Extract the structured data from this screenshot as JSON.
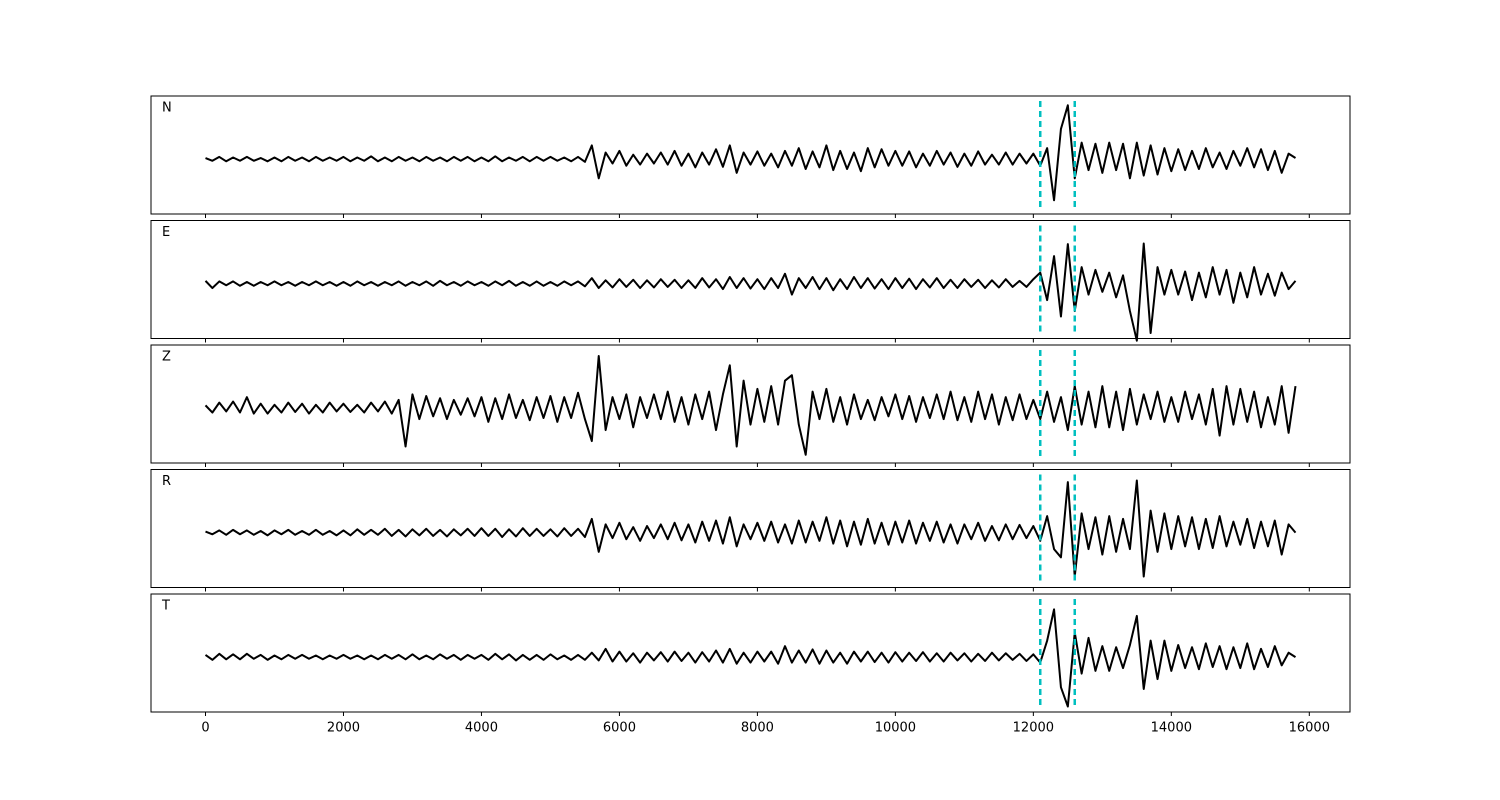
{
  "chart_data": {
    "type": "line",
    "layout": "stacked",
    "xlim": [
      -790,
      16590
    ],
    "ylim": [
      -1,
      1.15
    ],
    "xticks": [
      0,
      2000,
      4000,
      6000,
      8000,
      10000,
      12000,
      14000,
      16000
    ],
    "vlines": [
      12100,
      12600
    ],
    "vline_color": "#00bfbf",
    "vline_style": "dashed",
    "x": [
      0,
      100,
      200,
      300,
      400,
      500,
      600,
      700,
      800,
      900,
      1000,
      1100,
      1200,
      1300,
      1400,
      1500,
      1600,
      1700,
      1800,
      1900,
      2000,
      2100,
      2200,
      2300,
      2400,
      2500,
      2600,
      2700,
      2800,
      2900,
      3000,
      3100,
      3200,
      3300,
      3400,
      3500,
      3600,
      3700,
      3800,
      3900,
      4000,
      4100,
      4200,
      4300,
      4400,
      4500,
      4600,
      4700,
      4800,
      4900,
      5000,
      5100,
      5200,
      5300,
      5400,
      5500,
      5600,
      5700,
      5800,
      5900,
      6000,
      6100,
      6200,
      6300,
      6400,
      6500,
      6600,
      6700,
      6800,
      6900,
      7000,
      7100,
      7200,
      7300,
      7400,
      7500,
      7600,
      7700,
      7800,
      7900,
      8000,
      8100,
      8200,
      8300,
      8400,
      8500,
      8600,
      8700,
      8800,
      8900,
      9000,
      9100,
      9200,
      9300,
      9400,
      9500,
      9600,
      9700,
      9800,
      9900,
      10000,
      10100,
      10200,
      10300,
      10400,
      10500,
      10600,
      10700,
      10800,
      10900,
      11000,
      11100,
      11200,
      11300,
      11400,
      11500,
      11600,
      11700,
      11800,
      11900,
      12000,
      12100,
      12200,
      12300,
      12400,
      12500,
      12600,
      12700,
      12800,
      12900,
      13000,
      13100,
      13200,
      13300,
      13400,
      13500,
      13600,
      13700,
      13800,
      13900,
      14000,
      14100,
      14200,
      14300,
      14400,
      14500,
      14600,
      14700,
      14800,
      14900,
      15000,
      15100,
      15200,
      15300,
      15400,
      15500,
      15600,
      15700,
      15800
    ],
    "series": [
      {
        "name": "N",
        "color": "#000000",
        "values": [
          0.02,
          -0.03,
          0.04,
          -0.04,
          0.03,
          -0.03,
          0.04,
          -0.03,
          0.02,
          -0.04,
          0.03,
          -0.04,
          0.04,
          -0.03,
          0.03,
          -0.04,
          0.04,
          -0.03,
          0.03,
          -0.03,
          0.04,
          -0.04,
          0.03,
          -0.03,
          0.05,
          -0.04,
          0.03,
          -0.04,
          0.04,
          -0.03,
          0.03,
          -0.04,
          0.04,
          -0.03,
          0.03,
          -0.04,
          0.04,
          -0.03,
          0.04,
          -0.04,
          0.03,
          -0.04,
          0.05,
          -0.04,
          0.03,
          -0.03,
          0.04,
          -0.04,
          0.04,
          -0.03,
          0.04,
          -0.03,
          0.03,
          -0.04,
          0.04,
          -0.05,
          0.25,
          -0.35,
          0.12,
          -0.08,
          0.15,
          -0.12,
          0.08,
          -0.1,
          0.1,
          -0.08,
          0.12,
          -0.1,
          0.15,
          -0.12,
          0.1,
          -0.15,
          0.12,
          -0.1,
          0.18,
          -0.14,
          0.25,
          -0.25,
          0.12,
          -0.1,
          0.14,
          -0.12,
          0.1,
          -0.15,
          0.15,
          -0.12,
          0.2,
          -0.18,
          0.14,
          -0.15,
          0.25,
          -0.2,
          0.15,
          -0.18,
          0.12,
          -0.22,
          0.2,
          -0.15,
          0.18,
          -0.12,
          0.15,
          -0.12,
          0.14,
          -0.15,
          0.1,
          -0.12,
          0.15,
          -0.1,
          0.12,
          -0.14,
          0.1,
          -0.12,
          0.14,
          -0.1,
          0.08,
          -0.1,
          0.12,
          -0.1,
          0.1,
          -0.08,
          0.1,
          -0.12,
          0.2,
          -0.75,
          0.55,
          0.98,
          -0.35,
          0.3,
          -0.2,
          0.28,
          -0.25,
          0.3,
          -0.2,
          0.28,
          -0.35,
          0.3,
          -0.3,
          0.25,
          -0.28,
          0.2,
          -0.22,
          0.18,
          -0.2,
          0.15,
          -0.18,
          0.2,
          -0.15,
          0.12,
          -0.18,
          0.15,
          -0.12,
          0.2,
          -0.15,
          0.18,
          -0.2,
          0.15,
          -0.25,
          0.1,
          0.02
        ]
      },
      {
        "name": "E",
        "color": "#000000",
        "values": [
          0.05,
          -0.08,
          0.04,
          -0.03,
          0.04,
          -0.04,
          0.03,
          -0.04,
          0.03,
          -0.03,
          0.04,
          -0.03,
          0.03,
          -0.04,
          0.03,
          -0.03,
          0.04,
          -0.03,
          0.03,
          -0.04,
          0.03,
          -0.04,
          0.04,
          -0.03,
          0.03,
          -0.04,
          0.03,
          -0.03,
          0.04,
          -0.04,
          0.03,
          -0.03,
          0.04,
          -0.04,
          0.05,
          -0.03,
          0.03,
          -0.04,
          0.04,
          -0.03,
          0.03,
          -0.04,
          0.04,
          -0.03,
          0.05,
          -0.04,
          0.03,
          -0.04,
          0.04,
          -0.04,
          0.03,
          -0.04,
          0.04,
          -0.03,
          0.04,
          -0.05,
          0.1,
          -0.08,
          0.06,
          -0.07,
          0.08,
          -0.06,
          0.07,
          -0.08,
          0.06,
          -0.07,
          0.08,
          -0.06,
          0.07,
          -0.08,
          0.06,
          -0.08,
          0.1,
          -0.07,
          0.08,
          -0.1,
          0.12,
          -0.08,
          0.1,
          -0.09,
          0.08,
          -0.1,
          0.1,
          -0.08,
          0.18,
          -0.2,
          0.1,
          -0.08,
          0.12,
          -0.1,
          0.1,
          -0.12,
          0.08,
          -0.1,
          0.12,
          -0.08,
          0.1,
          -0.09,
          0.08,
          -0.1,
          0.1,
          -0.08,
          0.09,
          -0.1,
          0.08,
          -0.07,
          0.1,
          -0.08,
          0.07,
          -0.08,
          0.08,
          -0.06,
          0.07,
          -0.08,
          0.06,
          -0.07,
          0.08,
          -0.06,
          0.05,
          -0.06,
          0.08,
          0.2,
          -0.3,
          0.5,
          -0.6,
          0.72,
          -0.5,
          0.3,
          -0.2,
          0.25,
          -0.15,
          0.2,
          -0.25,
          0.15,
          -0.5,
          -1.04,
          0.73,
          -0.9,
          0.3,
          -0.2,
          0.25,
          -0.2,
          0.22,
          -0.3,
          0.2,
          -0.25,
          0.3,
          -0.2,
          0.25,
          -0.35,
          0.2,
          -0.25,
          0.3,
          -0.2,
          0.18,
          -0.22,
          0.2,
          -0.1,
          0.05
        ]
      },
      {
        "name": "Z",
        "color": "#000000",
        "values": [
          0.05,
          -0.08,
          0.1,
          -0.06,
          0.12,
          -0.08,
          0.2,
          -0.1,
          0.08,
          -0.1,
          0.06,
          -0.08,
          0.1,
          -0.07,
          0.08,
          -0.1,
          0.06,
          -0.08,
          0.1,
          -0.06,
          0.08,
          -0.07,
          0.06,
          -0.08,
          0.1,
          -0.06,
          0.12,
          -0.1,
          0.15,
          -0.7,
          0.25,
          -0.2,
          0.22,
          -0.15,
          0.18,
          -0.2,
          0.15,
          -0.12,
          0.18,
          -0.15,
          0.2,
          -0.25,
          0.18,
          -0.2,
          0.25,
          -0.18,
          0.15,
          -0.22,
          0.2,
          -0.18,
          0.22,
          -0.25,
          0.2,
          -0.18,
          0.28,
          -0.2,
          -0.6,
          0.95,
          -0.4,
          0.2,
          -0.2,
          0.25,
          -0.35,
          0.2,
          -0.18,
          0.25,
          -0.2,
          0.3,
          -0.25,
          0.2,
          -0.3,
          0.25,
          -0.2,
          0.3,
          -0.4,
          0.25,
          0.78,
          -0.7,
          0.5,
          -0.3,
          0.35,
          -0.25,
          0.4,
          -0.3,
          0.5,
          0.6,
          -0.3,
          -0.85,
          0.3,
          -0.2,
          0.35,
          -0.25,
          0.2,
          -0.3,
          0.25,
          -0.2,
          0.15,
          -0.22,
          0.2,
          -0.15,
          0.25,
          -0.2,
          0.22,
          -0.25,
          0.2,
          -0.18,
          0.25,
          -0.2,
          0.3,
          -0.22,
          0.2,
          -0.25,
          0.3,
          -0.2,
          0.25,
          -0.3,
          0.2,
          -0.22,
          0.25,
          -0.2,
          0.15,
          -0.2,
          0.3,
          -0.25,
          0.2,
          -0.4,
          0.4,
          -0.3,
          0.3,
          -0.35,
          0.4,
          -0.35,
          0.3,
          -0.4,
          0.35,
          -0.3,
          0.25,
          -0.2,
          0.3,
          -0.25,
          0.2,
          -0.25,
          0.3,
          -0.2,
          0.25,
          -0.3,
          0.35,
          -0.5,
          0.4,
          -0.3,
          0.35,
          -0.25,
          0.3,
          -0.35,
          0.2,
          -0.3,
          0.4,
          -0.45,
          0.4
        ]
      },
      {
        "name": "R",
        "color": "#000000",
        "values": [
          0.02,
          -0.03,
          0.04,
          -0.04,
          0.05,
          -0.03,
          0.04,
          -0.04,
          0.03,
          -0.05,
          0.04,
          -0.03,
          0.05,
          -0.04,
          0.03,
          -0.04,
          0.05,
          -0.04,
          0.03,
          -0.05,
          0.04,
          -0.05,
          0.06,
          -0.04,
          0.05,
          -0.04,
          0.07,
          -0.06,
          0.05,
          -0.07,
          0.06,
          -0.05,
          0.07,
          -0.06,
          0.05,
          -0.07,
          0.06,
          -0.05,
          0.07,
          -0.06,
          0.08,
          -0.06,
          0.07,
          -0.08,
          0.06,
          -0.07,
          0.08,
          -0.06,
          0.07,
          -0.06,
          0.06,
          -0.07,
          0.08,
          -0.06,
          0.07,
          -0.08,
          0.25,
          -0.35,
          0.15,
          -0.1,
          0.18,
          -0.12,
          0.1,
          -0.15,
          0.12,
          -0.1,
          0.15,
          -0.12,
          0.18,
          -0.14,
          0.15,
          -0.18,
          0.2,
          -0.15,
          0.22,
          -0.2,
          0.28,
          -0.25,
          0.15,
          -0.12,
          0.18,
          -0.15,
          0.2,
          -0.18,
          0.15,
          -0.2,
          0.22,
          -0.18,
          0.2,
          -0.15,
          0.28,
          -0.2,
          0.22,
          -0.25,
          0.2,
          -0.22,
          0.25,
          -0.2,
          0.18,
          -0.22,
          0.2,
          -0.18,
          0.22,
          -0.2,
          0.18,
          -0.15,
          0.2,
          -0.18,
          0.15,
          -0.2,
          0.15,
          -0.12,
          0.18,
          -0.15,
          0.12,
          -0.14,
          0.15,
          -0.12,
          0.14,
          -0.1,
          0.12,
          -0.15,
          0.3,
          -0.3,
          -0.45,
          0.92,
          -0.8,
          0.35,
          -0.3,
          0.28,
          -0.4,
          0.3,
          -0.35,
          0.25,
          -0.3,
          0.95,
          -0.8,
          0.4,
          -0.35,
          0.35,
          -0.3,
          0.3,
          -0.25,
          0.28,
          -0.3,
          0.25,
          -0.28,
          0.3,
          -0.25,
          0.2,
          -0.22,
          0.25,
          -0.28,
          0.2,
          -0.25,
          0.22,
          -0.4,
          0.15,
          0.0
        ]
      },
      {
        "name": "T",
        "color": "#000000",
        "values": [
          0.04,
          -0.05,
          0.06,
          -0.04,
          0.05,
          -0.04,
          0.06,
          -0.03,
          0.04,
          -0.05,
          0.03,
          -0.04,
          0.04,
          -0.03,
          0.04,
          -0.03,
          0.03,
          -0.04,
          0.03,
          -0.03,
          0.04,
          -0.03,
          0.03,
          -0.04,
          0.03,
          -0.04,
          0.04,
          -0.03,
          0.04,
          -0.04,
          0.05,
          -0.04,
          0.03,
          -0.04,
          0.05,
          -0.03,
          0.04,
          -0.05,
          0.04,
          -0.03,
          0.04,
          -0.05,
          0.06,
          -0.04,
          0.05,
          -0.06,
          0.04,
          -0.05,
          0.04,
          -0.05,
          0.05,
          -0.04,
          0.03,
          -0.05,
          0.04,
          -0.05,
          0.08,
          -0.06,
          0.15,
          -0.08,
          0.1,
          -0.08,
          0.07,
          -0.1,
          0.08,
          -0.06,
          0.09,
          -0.08,
          0.1,
          -0.07,
          0.08,
          -0.1,
          0.09,
          -0.08,
          0.12,
          -0.1,
          0.15,
          -0.12,
          0.08,
          -0.1,
          0.1,
          -0.08,
          0.1,
          -0.12,
          0.2,
          -0.1,
          0.12,
          -0.1,
          0.14,
          -0.12,
          0.12,
          -0.1,
          0.08,
          -0.12,
          0.1,
          -0.08,
          0.1,
          -0.09,
          0.08,
          -0.1,
          0.09,
          -0.08,
          0.08,
          -0.07,
          0.09,
          -0.08,
          0.07,
          -0.08,
          0.08,
          -0.06,
          0.07,
          -0.08,
          0.06,
          -0.07,
          0.08,
          -0.06,
          0.07,
          -0.05,
          0.06,
          -0.07,
          0.05,
          -0.1,
          0.3,
          0.87,
          -0.55,
          -0.9,
          0.45,
          -0.3,
          0.35,
          -0.25,
          0.2,
          -0.25,
          0.18,
          -0.2,
          0.22,
          0.75,
          -0.58,
          0.3,
          -0.4,
          0.3,
          -0.25,
          0.22,
          -0.2,
          0.18,
          -0.22,
          0.25,
          -0.18,
          0.2,
          -0.22,
          0.18,
          -0.2,
          0.25,
          -0.22,
          0.15,
          -0.18,
          0.2,
          -0.15,
          0.08,
          0.0
        ]
      }
    ]
  }
}
